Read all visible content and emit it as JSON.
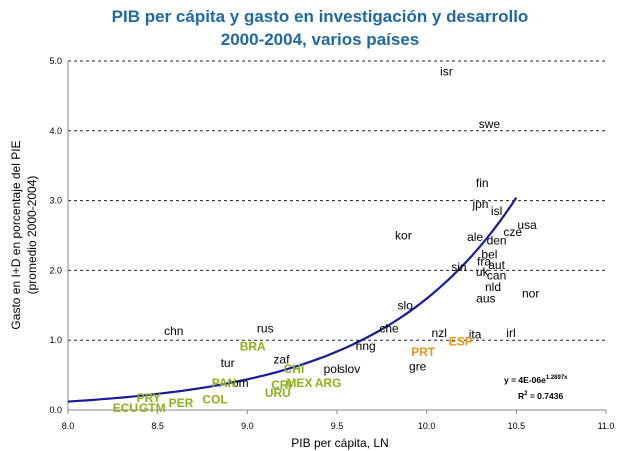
{
  "chart_data": {
    "type": "scatter",
    "title_line1": "PIB per cápita y gasto en investigación y desarrollo",
    "title_line2": "2000-2004, varios países",
    "xlabel": "PIB per cápita, LN",
    "ylabel_line1": "Gasto en I+D en porcentaje del PIE",
    "ylabel_line2": "(promedio 2000-2004)",
    "xlim": [
      8.0,
      11.0
    ],
    "ylim": [
      0.0,
      5.0
    ],
    "x_ticks": [
      "8.0",
      "8.5",
      "9.0",
      "9.5",
      "10.0",
      "10.5",
      "11.0"
    ],
    "y_ticks": [
      "0.0",
      "1.0",
      "2.0",
      "3.0",
      "4.0",
      "5.0"
    ],
    "grid": "horizontal dotted",
    "colors": {
      "high_income": "#000000",
      "latin_america": "#8db31a",
      "iberia": "#e8961f",
      "trend": "#1a1aa0",
      "title": "#1f6aa5"
    },
    "points": [
      {
        "label": "isr",
        "x": 10.11,
        "y": 4.85,
        "group": "black"
      },
      {
        "label": "swe",
        "x": 10.35,
        "y": 4.1,
        "group": "black"
      },
      {
        "label": "fin",
        "x": 10.31,
        "y": 3.25,
        "group": "black"
      },
      {
        "label": "jpn",
        "x": 10.3,
        "y": 2.95,
        "group": "black"
      },
      {
        "label": "isl",
        "x": 10.39,
        "y": 2.85,
        "group": "black"
      },
      {
        "label": "usa",
        "x": 10.56,
        "y": 2.65,
        "group": "black"
      },
      {
        "label": "cze",
        "x": 10.48,
        "y": 2.55,
        "group": "black"
      },
      {
        "label": "kor",
        "x": 9.87,
        "y": 2.5,
        "group": "black"
      },
      {
        "label": "ale",
        "x": 10.27,
        "y": 2.48,
        "group": "black"
      },
      {
        "label": "den",
        "x": 10.39,
        "y": 2.43,
        "group": "black"
      },
      {
        "label": "bel",
        "x": 10.35,
        "y": 2.23,
        "group": "black"
      },
      {
        "label": "fra",
        "x": 10.32,
        "y": 2.13,
        "group": "black"
      },
      {
        "label": "aut",
        "x": 10.39,
        "y": 2.08,
        "group": "black"
      },
      {
        "label": "sin",
        "x": 10.18,
        "y": 2.05,
        "group": "black"
      },
      {
        "label": "uk",
        "x": 10.31,
        "y": 1.98,
        "group": "black"
      },
      {
        "label": "can",
        "x": 10.39,
        "y": 1.93,
        "group": "black"
      },
      {
        "label": "nld",
        "x": 10.37,
        "y": 1.76,
        "group": "black"
      },
      {
        "label": "nor",
        "x": 10.58,
        "y": 1.67,
        "group": "black"
      },
      {
        "label": "aus",
        "x": 10.33,
        "y": 1.6,
        "group": "black"
      },
      {
        "label": "slo",
        "x": 9.88,
        "y": 1.5,
        "group": "black"
      },
      {
        "label": "che",
        "x": 9.79,
        "y": 1.17,
        "group": "black"
      },
      {
        "label": "nzl",
        "x": 10.07,
        "y": 1.1,
        "group": "black"
      },
      {
        "label": "ita",
        "x": 10.27,
        "y": 1.08,
        "group": "black"
      },
      {
        "label": "irl",
        "x": 10.47,
        "y": 1.1,
        "group": "black"
      },
      {
        "label": "chn",
        "x": 8.59,
        "y": 1.13,
        "group": "black"
      },
      {
        "label": "rus",
        "x": 9.1,
        "y": 1.17,
        "group": "black"
      },
      {
        "label": "hng",
        "x": 9.66,
        "y": 0.92,
        "group": "black"
      },
      {
        "label": "tur",
        "x": 8.89,
        "y": 0.67,
        "group": "black"
      },
      {
        "label": "zaf",
        "x": 9.19,
        "y": 0.72,
        "group": "black"
      },
      {
        "label": "pol",
        "x": 9.47,
        "y": 0.59,
        "group": "black"
      },
      {
        "label": "slov",
        "x": 9.57,
        "y": 0.59,
        "group": "black"
      },
      {
        "label": "gre",
        "x": 9.95,
        "y": 0.62,
        "group": "black"
      },
      {
        "label": "rom",
        "x": 8.95,
        "y": 0.39,
        "group": "black"
      },
      {
        "label": "BRA",
        "x": 9.03,
        "y": 0.91,
        "group": "green"
      },
      {
        "label": "CHI",
        "x": 9.26,
        "y": 0.59,
        "group": "green"
      },
      {
        "label": "PAN",
        "x": 8.87,
        "y": 0.39,
        "group": "green"
      },
      {
        "label": "CRI",
        "x": 9.19,
        "y": 0.36,
        "group": "green"
      },
      {
        "label": "MEX",
        "x": 9.29,
        "y": 0.39,
        "group": "green"
      },
      {
        "label": "ARG",
        "x": 9.45,
        "y": 0.39,
        "group": "green"
      },
      {
        "label": "URU",
        "x": 9.17,
        "y": 0.24,
        "group": "green"
      },
      {
        "label": "PRY",
        "x": 8.45,
        "y": 0.17,
        "group": "green"
      },
      {
        "label": "COL",
        "x": 8.82,
        "y": 0.15,
        "group": "green"
      },
      {
        "label": "PER",
        "x": 8.63,
        "y": 0.1,
        "group": "green"
      },
      {
        "label": "ECU",
        "x": 8.32,
        "y": 0.03,
        "group": "green"
      },
      {
        "label": "GTM",
        "x": 8.47,
        "y": 0.03,
        "group": "green"
      },
      {
        "label": "PRT",
        "x": 9.98,
        "y": 0.83,
        "group": "orange"
      },
      {
        "label": "ESP",
        "x": 10.19,
        "y": 0.98,
        "group": "orange"
      }
    ],
    "trendline": {
      "type": "exponential",
      "a": 4e-06,
      "b": 1.2897,
      "x_from": 8.0,
      "x_to": 10.5
    },
    "equation": "y = 4E-06e",
    "equation_exp": "1.2897x",
    "r2_label": "R",
    "r2_value": " = 0.7436"
  }
}
